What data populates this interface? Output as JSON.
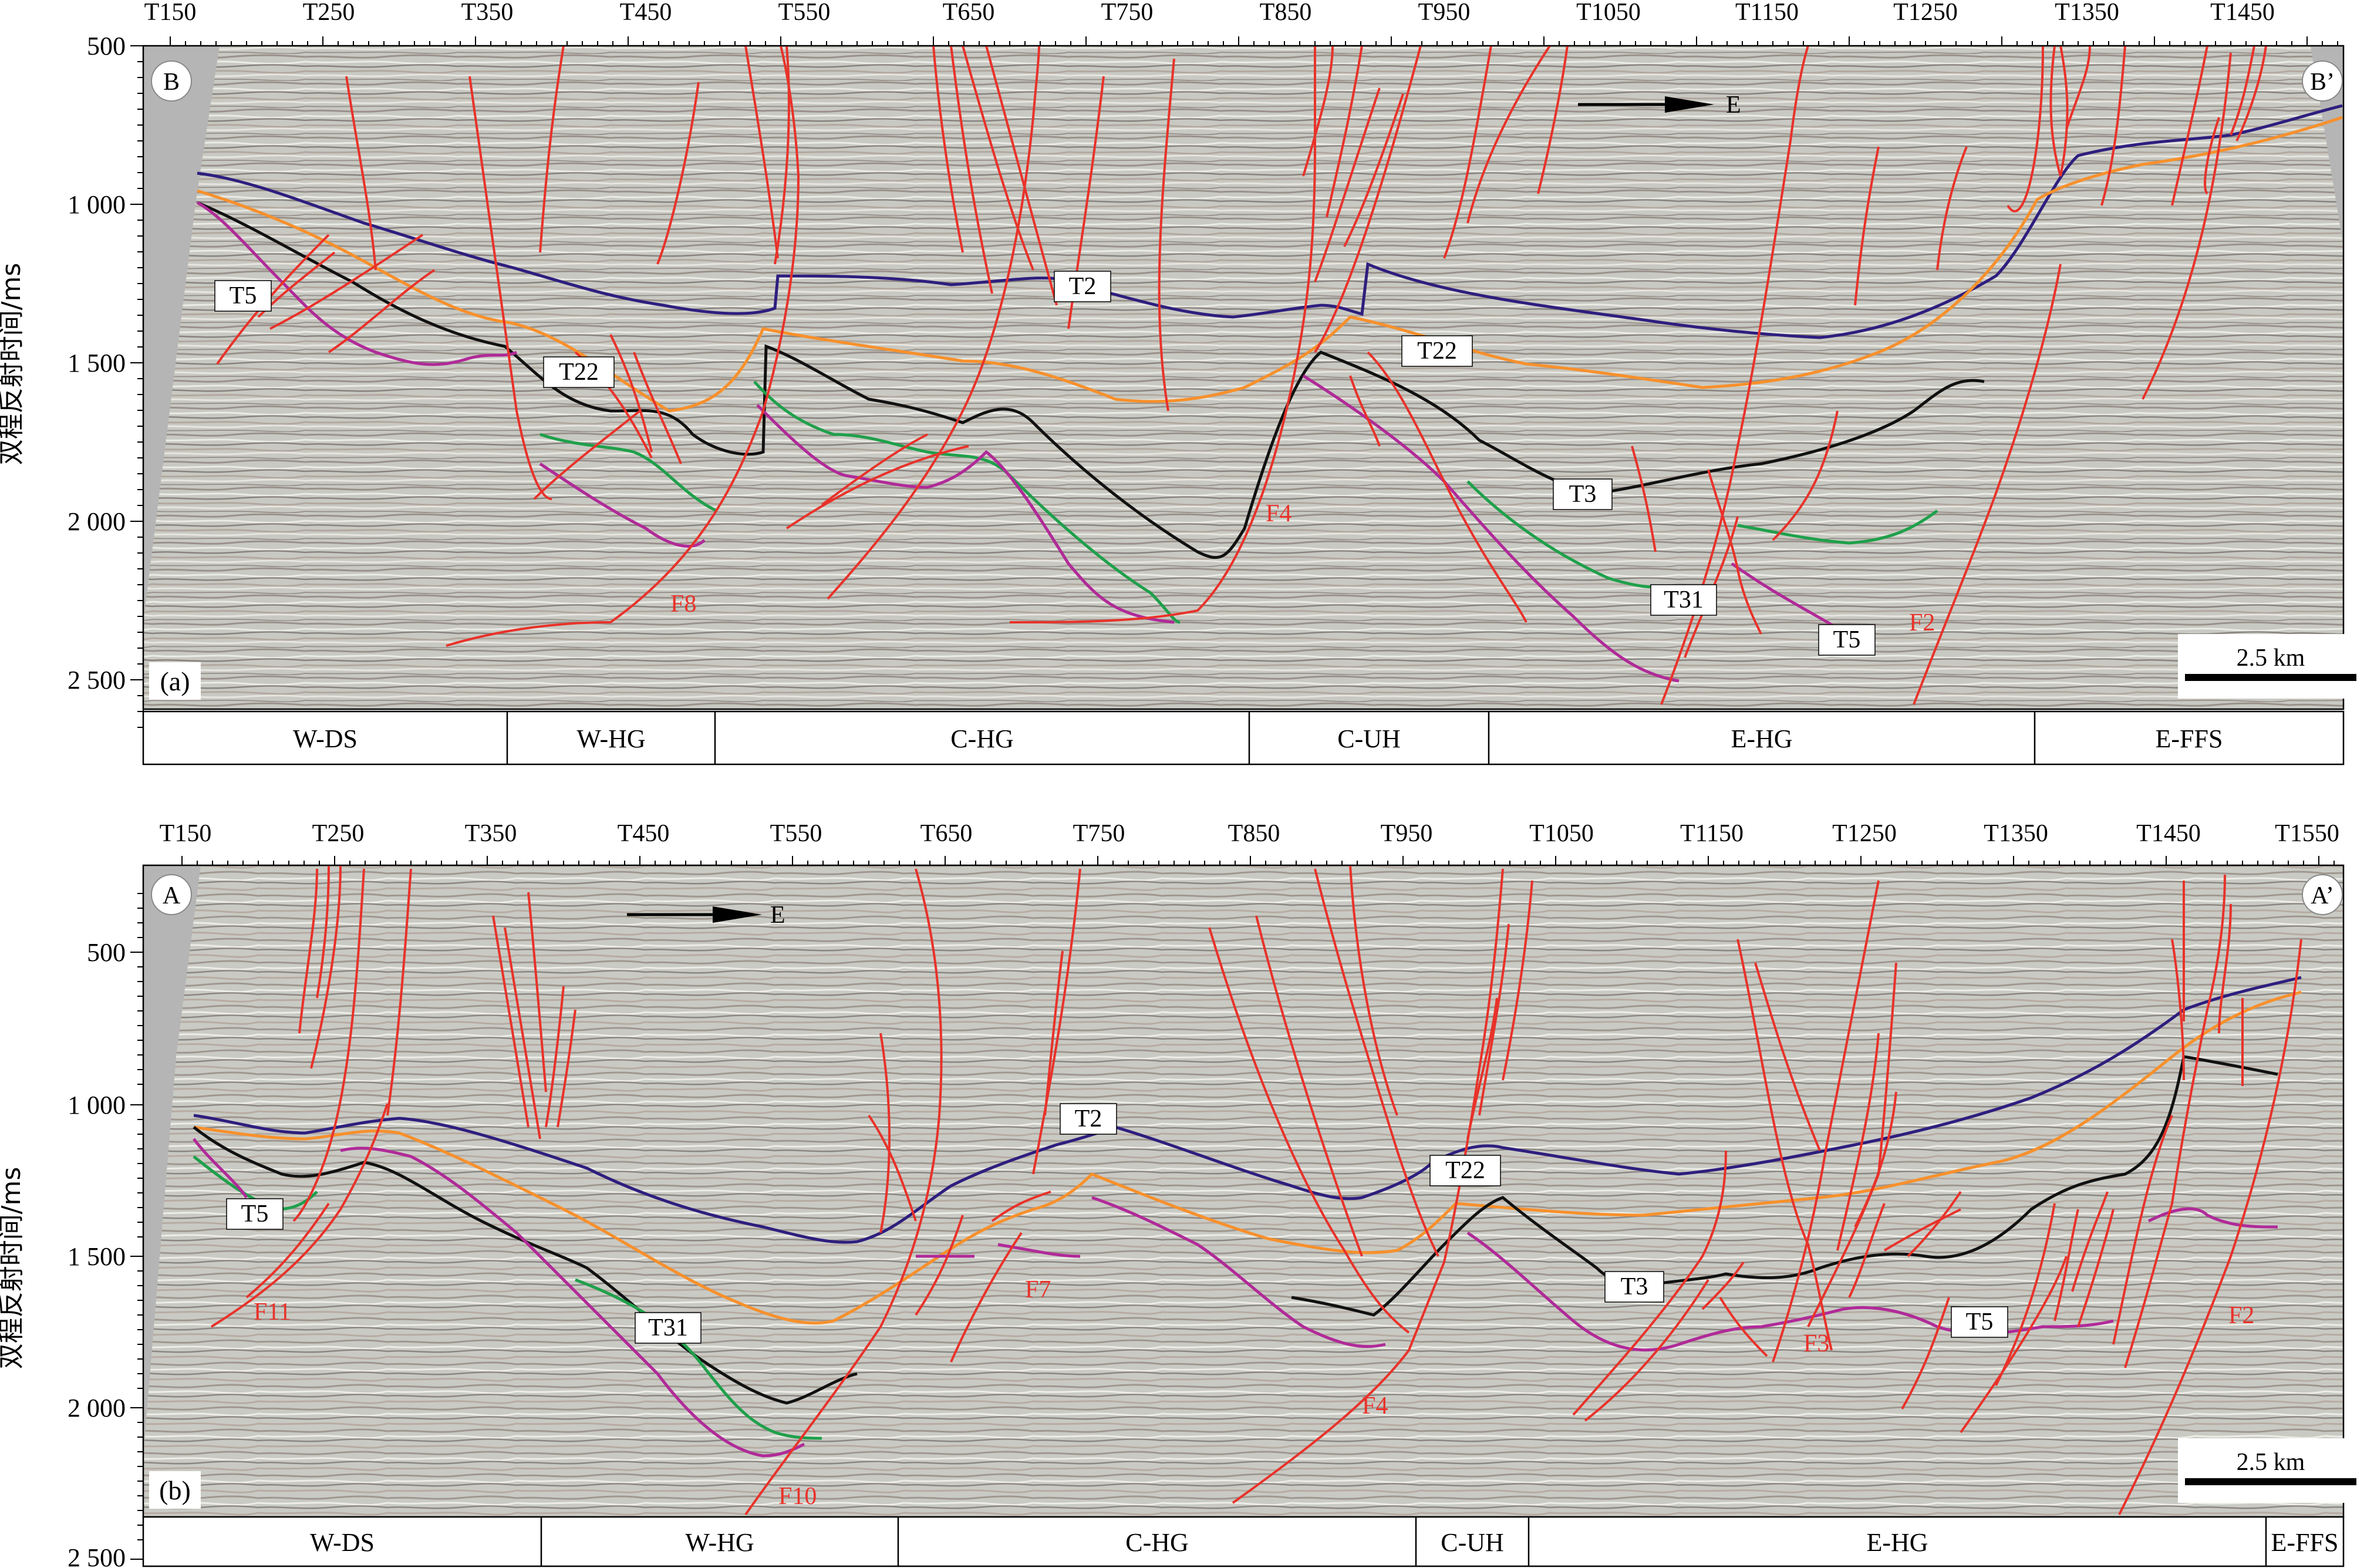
{
  "y_axis_title": "双程反射时间/ms",
  "scale_bar": "2.5 km",
  "direction_label": "E",
  "colors": {
    "T2": "#2e1e7e",
    "T22": "#f7902c",
    "T3": "#111111",
    "T31": "#1fa04b",
    "T5": "#b02a98",
    "fault": "#e8322a",
    "seismic_bg": "#c9cac4",
    "margin_gray": "#b4b4b4"
  },
  "panels": [
    {
      "id": "a",
      "panel_label": "(a)",
      "corner_left": "B",
      "corner_right": "B’",
      "trace_labels": [
        "T150",
        "T250",
        "T350",
        "T450",
        "T550",
        "T650",
        "T750",
        "T850",
        "T950",
        "T1050",
        "T1150",
        "T1250",
        "T1350",
        "T1450"
      ],
      "y_ticks": [
        "500",
        "1 000",
        "1 500",
        "2 000",
        "2 500"
      ],
      "zones": [
        "W-DS",
        "W-HG",
        "C-HG",
        "C-UH",
        "E-HG",
        "E-FFS"
      ],
      "horizon_labels": [
        "T5",
        "T22",
        "T2",
        "T22",
        "T3",
        "T31",
        "T5"
      ],
      "fault_labels": [
        "F8",
        "F4",
        "F2"
      ]
    },
    {
      "id": "b",
      "panel_label": "(b)",
      "corner_left": "A",
      "corner_right": "A’",
      "trace_labels": [
        "T150",
        "T250",
        "T350",
        "T450",
        "T550",
        "T650",
        "T750",
        "T850",
        "T950",
        "T1050",
        "T1150",
        "T1250",
        "T1350",
        "T1450",
        "T1550"
      ],
      "y_ticks": [
        "500",
        "1 000",
        "1 500",
        "2 000",
        "2 500"
      ],
      "zones": [
        "W-DS",
        "W-HG",
        "C-HG",
        "C-UH",
        "E-HG",
        "E-FFS"
      ],
      "horizon_labels": [
        "T5",
        "T31",
        "T2",
        "T22",
        "T3",
        "T5"
      ],
      "fault_labels": [
        "F11",
        "F10",
        "F7",
        "F4",
        "F3",
        "F2"
      ]
    }
  ]
}
